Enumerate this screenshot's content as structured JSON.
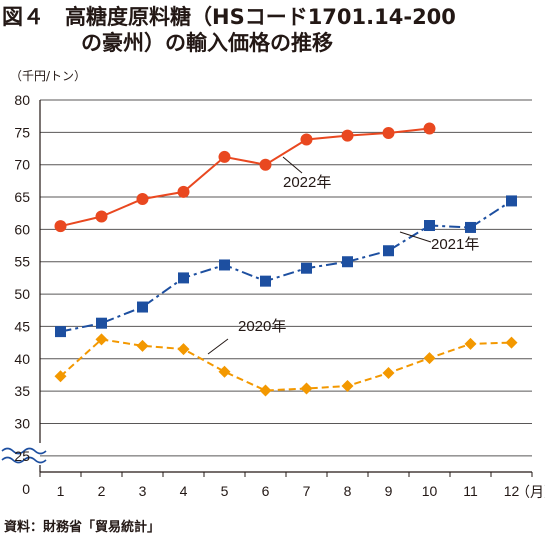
{
  "title": {
    "line1": "図４　高糖度原料糖（HSコード1701.14-200",
    "line2": "の豪州）の輸入価格の推移"
  },
  "unit_label": "（千円/トン）",
  "source": "資料：財務省「貿易統計」",
  "chart_data": {
    "type": "line",
    "x": [
      1,
      2,
      3,
      4,
      5,
      6,
      7,
      8,
      9,
      10,
      11,
      12
    ],
    "x_tick_labels": [
      "1",
      "2",
      "3",
      "4",
      "5",
      "6",
      "7",
      "8",
      "9",
      "10",
      "11",
      "12"
    ],
    "x_unit_label": "（月）",
    "y_ticks": [
      80,
      75,
      70,
      65,
      60,
      55,
      50,
      45,
      40,
      35,
      30,
      25
    ],
    "y_zero_label": "0",
    "ylim": [
      22.5,
      80
    ],
    "axis_break": "wavy lines below 25",
    "grid": "horizontal",
    "series": [
      {
        "name": "2020年",
        "color": "#f39800",
        "marker": "diamond",
        "line": "dashed",
        "values": [
          37.3,
          43.0,
          42.0,
          41.5,
          38.0,
          35.1,
          35.4,
          35.8,
          37.8,
          40.1,
          42.3,
          42.5
        ]
      },
      {
        "name": "2021年",
        "color": "#1d4fa0",
        "marker": "square",
        "line": "dash-dot",
        "values": [
          44.2,
          45.5,
          48.0,
          52.5,
          54.5,
          52.0,
          54.0,
          55.0,
          56.7,
          60.6,
          60.3,
          64.4
        ]
      },
      {
        "name": "2022年",
        "color": "#e94820",
        "marker": "circle",
        "line": "solid",
        "values": [
          60.5,
          62.0,
          64.7,
          65.8,
          71.2,
          70.0,
          73.9,
          74.5,
          74.9,
          75.6,
          null,
          null
        ]
      }
    ]
  }
}
